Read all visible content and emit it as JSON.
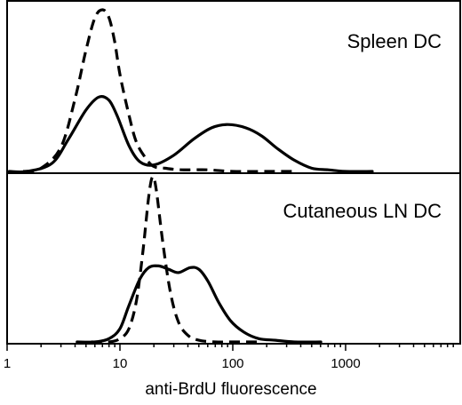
{
  "chart_data": [
    {
      "type": "line",
      "panel": "top",
      "title": "Spleen DC",
      "xscale": "log",
      "xlim": [
        1,
        8000
      ],
      "xlabel": "anti-BrdU fluorescence",
      "grid": false,
      "series": [
        {
          "style": "dashed",
          "color": "#000000",
          "x": [
            2.0,
            3.0,
            4.0,
            5.0,
            6.0,
            7.0,
            8.0,
            9.0,
            10.0,
            12.0,
            14.0,
            17.0,
            20.0,
            25.0,
            35.0,
            60.0,
            100.0,
            200.0
          ],
          "y": [
            0.02,
            0.15,
            0.45,
            0.75,
            0.95,
            1.0,
            0.95,
            0.8,
            0.6,
            0.35,
            0.18,
            0.08,
            0.03,
            0.02,
            0.01,
            0.01,
            0.0,
            0.0
          ]
        },
        {
          "style": "solid",
          "color": "#000000",
          "x": [
            1.5,
            2.5,
            3.5,
            5.0,
            6.5,
            8.0,
            9.5,
            12.0,
            15.0,
            20.0,
            30.0,
            45.0,
            65.0,
            90.0,
            130.0,
            180.0,
            250.0,
            350.0,
            500.0,
            700.0,
            1000.0
          ],
          "y": [
            0.0,
            0.05,
            0.2,
            0.38,
            0.46,
            0.44,
            0.34,
            0.16,
            0.06,
            0.04,
            0.1,
            0.2,
            0.27,
            0.29,
            0.27,
            0.22,
            0.14,
            0.07,
            0.02,
            0.01,
            0.0
          ]
        }
      ]
    },
    {
      "type": "line",
      "panel": "bottom",
      "title": "Cutaneous LN DC",
      "xscale": "log",
      "xlim": [
        1,
        8000
      ],
      "ticks": [
        "1",
        "10",
        "100",
        "1000"
      ],
      "xlabel": "anti-BrdU fluorescence",
      "grid": false,
      "series": [
        {
          "style": "dashed",
          "color": "#000000",
          "x": [
            8.0,
            10.0,
            12.0,
            14.0,
            16.0,
            18.0,
            19.5,
            21.0,
            24.0,
            28.0,
            33.0,
            40.0,
            50.0,
            70.0,
            100.0
          ],
          "y": [
            0.0,
            0.02,
            0.08,
            0.25,
            0.55,
            0.88,
            1.0,
            0.92,
            0.6,
            0.3,
            0.12,
            0.04,
            0.01,
            0.0,
            0.0
          ]
        },
        {
          "style": "solid",
          "color": "#000000",
          "x": [
            6.0,
            8.0,
            10.0,
            12.0,
            15.0,
            18.0,
            22.0,
            27.0,
            33.0,
            42.0,
            50.0,
            60.0,
            75.0,
            95.0,
            125.0,
            170.0,
            240.0,
            350.0
          ],
          "y": [
            0.0,
            0.02,
            0.08,
            0.22,
            0.38,
            0.45,
            0.46,
            0.44,
            0.42,
            0.45,
            0.44,
            0.37,
            0.24,
            0.13,
            0.06,
            0.02,
            0.01,
            0.0
          ]
        }
      ]
    }
  ]
}
